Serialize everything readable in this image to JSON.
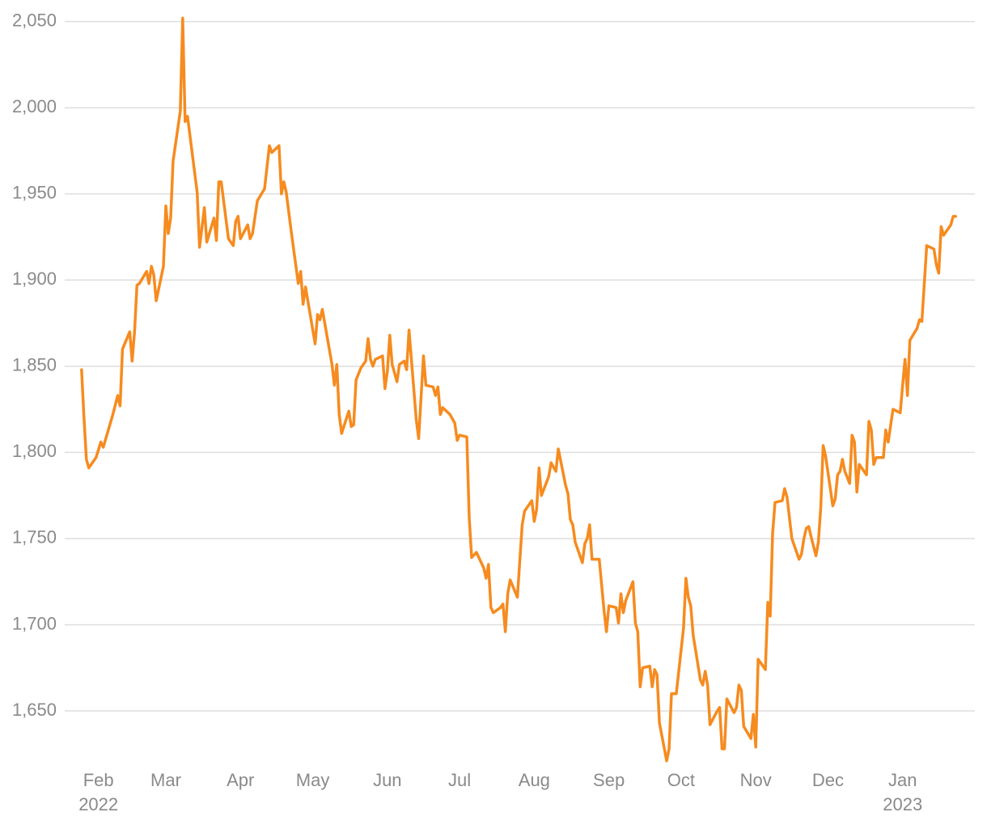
{
  "chart_data": {
    "type": "line",
    "x": [
      25,
      26,
      27,
      28,
      31,
      33,
      34,
      38,
      40,
      41,
      42,
      45,
      46,
      47,
      48,
      49,
      52,
      53,
      54,
      55,
      56,
      59,
      60,
      61,
      62,
      63,
      66,
      67,
      68,
      69,
      73,
      74,
      76,
      77,
      80,
      81,
      82,
      83,
      86,
      88,
      89,
      90,
      91,
      94,
      95,
      96,
      98,
      101,
      103,
      104,
      107,
      108,
      109,
      110,
      112,
      115,
      116,
      117,
      118,
      122,
      123,
      124,
      125,
      129,
      130,
      131,
      132,
      133,
      136,
      137,
      138,
      139,
      141,
      143,
      144,
      145,
      146,
      147,
      150,
      151,
      152,
      153,
      154,
      156,
      157,
      159,
      160,
      161,
      164,
      165,
      167,
      168,
      171,
      172,
      173,
      174,
      175,
      178,
      180,
      181,
      182,
      185,
      186,
      187,
      189,
      192,
      193,
      194,
      195,
      196,
      199,
      200,
      201,
      202,
      203,
      206,
      208,
      209,
      212,
      213,
      214,
      215,
      216,
      219,
      220,
      222,
      223,
      226,
      227,
      228,
      229,
      230,
      233,
      234,
      235,
      236,
      237,
      240,
      242,
      243,
      244,
      247,
      248,
      249,
      250,
      251,
      254,
      255,
      256,
      257,
      258,
      261,
      262,
      263,
      264,
      265,
      268,
      269,
      270,
      272,
      275,
      276,
      277,
      278,
      279,
      282,
      283,
      284,
      285,
      286,
      289,
      290,
      291,
      292,
      293,
      296,
      297,
      298,
      299,
      300,
      303,
      304,
      305,
      306,
      309,
      310,
      311,
      312,
      313,
      316,
      317,
      318,
      320,
      323,
      324,
      325,
      326,
      327,
      328,
      330,
      331,
      332,
      333,
      334,
      337,
      338,
      339,
      340,
      341,
      342,
      344,
      345,
      346,
      347,
      348,
      351,
      352,
      353,
      354,
      355,
      358,
      359,
      360,
      362,
      365,
      366,
      367,
      368,
      369,
      372,
      373,
      374,
      376,
      379,
      380,
      381,
      382,
      383,
      386,
      387,
      388
    ],
    "series": [
      {
        "color": "#f68b1f",
        "values": [
          1848,
          1820,
          1796,
          1791,
          1797,
          1806,
          1803,
          1822,
          1833,
          1827,
          1860,
          1870,
          1853,
          1870,
          1897,
          1898,
          1905,
          1898,
          1908,
          1903,
          1888,
          1908,
          1943,
          1927,
          1936,
          1969,
          1998,
          2052,
          1992,
          1995,
          1951,
          1919,
          1942,
          1922,
          1936,
          1923,
          1957,
          1957,
          1924,
          1920,
          1934,
          1937,
          1924,
          1932,
          1924,
          1927,
          1946,
          1953,
          1978,
          1974,
          1978,
          1950,
          1957,
          1951,
          1929,
          1898,
          1905,
          1886,
          1896,
          1863,
          1880,
          1877,
          1883,
          1851,
          1839,
          1851,
          1822,
          1811,
          1824,
          1815,
          1816,
          1842,
          1849,
          1853,
          1866,
          1854,
          1850,
          1854,
          1856,
          1837,
          1847,
          1868,
          1851,
          1841,
          1851,
          1853,
          1848,
          1871,
          1819,
          1808,
          1856,
          1839,
          1838,
          1833,
          1838,
          1822,
          1826,
          1822,
          1817,
          1807,
          1810,
          1809,
          1762,
          1739,
          1742,
          1733,
          1727,
          1735,
          1710,
          1707,
          1710,
          1712,
          1696,
          1718,
          1726,
          1716,
          1758,
          1766,
          1772,
          1760,
          1767,
          1791,
          1775,
          1786,
          1794,
          1789,
          1802,
          1781,
          1776,
          1761,
          1758,
          1748,
          1736,
          1747,
          1750,
          1758,
          1738,
          1738,
          1708,
          1696,
          1711,
          1710,
          1701,
          1718,
          1707,
          1714,
          1725,
          1701,
          1696,
          1664,
          1675,
          1676,
          1664,
          1674,
          1671,
          1643,
          1621,
          1628,
          1660,
          1660,
          1698,
          1727,
          1716,
          1711,
          1694,
          1668,
          1665,
          1673,
          1665,
          1642,
          1650,
          1652,
          1628,
          1628,
          1657,
          1649,
          1652,
          1665,
          1662,
          1641,
          1634,
          1648,
          1629,
          1680,
          1674,
          1713,
          1705,
          1753,
          1771,
          1772,
          1779,
          1774,
          1750,
          1738,
          1741,
          1750,
          1756,
          1757,
          1751,
          1740,
          1748,
          1768,
          1804,
          1798,
          1769,
          1773,
          1787,
          1789,
          1796,
          1789,
          1782,
          1810,
          1806,
          1777,
          1793,
          1787,
          1818,
          1813,
          1793,
          1797,
          1797,
          1813,
          1806,
          1825,
          1823,
          1839,
          1854,
          1833,
          1865,
          1872,
          1877,
          1876,
          1920,
          1918,
          1909,
          1904,
          1931,
          1926,
          1932,
          1937,
          1937
        ]
      }
    ],
    "xlim": [
      18,
      396
    ],
    "xticks": [
      {
        "value": 32,
        "label": "Feb"
      },
      {
        "value": 60,
        "label": "Mar"
      },
      {
        "value": 91,
        "label": "Apr"
      },
      {
        "value": 121,
        "label": "May"
      },
      {
        "value": 152,
        "label": "Jun"
      },
      {
        "value": 182,
        "label": "Jul"
      },
      {
        "value": 213,
        "label": "Aug"
      },
      {
        "value": 244,
        "label": "Sep"
      },
      {
        "value": 274,
        "label": "Oct"
      },
      {
        "value": 305,
        "label": "Nov"
      },
      {
        "value": 335,
        "label": "Dec"
      },
      {
        "value": 366,
        "label": "Jan"
      }
    ],
    "x_year_labels": [
      {
        "value": 32,
        "label": "2022"
      },
      {
        "value": 366,
        "label": "2023"
      }
    ],
    "ylim": [
      1615,
      2055
    ],
    "yticks": [
      {
        "value": 1650,
        "label": "1,650"
      },
      {
        "value": 1700,
        "label": "1,700"
      },
      {
        "value": 1750,
        "label": "1,750"
      },
      {
        "value": 1800,
        "label": "1,800"
      },
      {
        "value": 1850,
        "label": "1,850"
      },
      {
        "value": 1900,
        "label": "1,900"
      },
      {
        "value": 1950,
        "label": "1,950"
      },
      {
        "value": 2000,
        "label": "2,000"
      },
      {
        "value": 2050,
        "label": "2,050"
      }
    ],
    "grid": true
  }
}
